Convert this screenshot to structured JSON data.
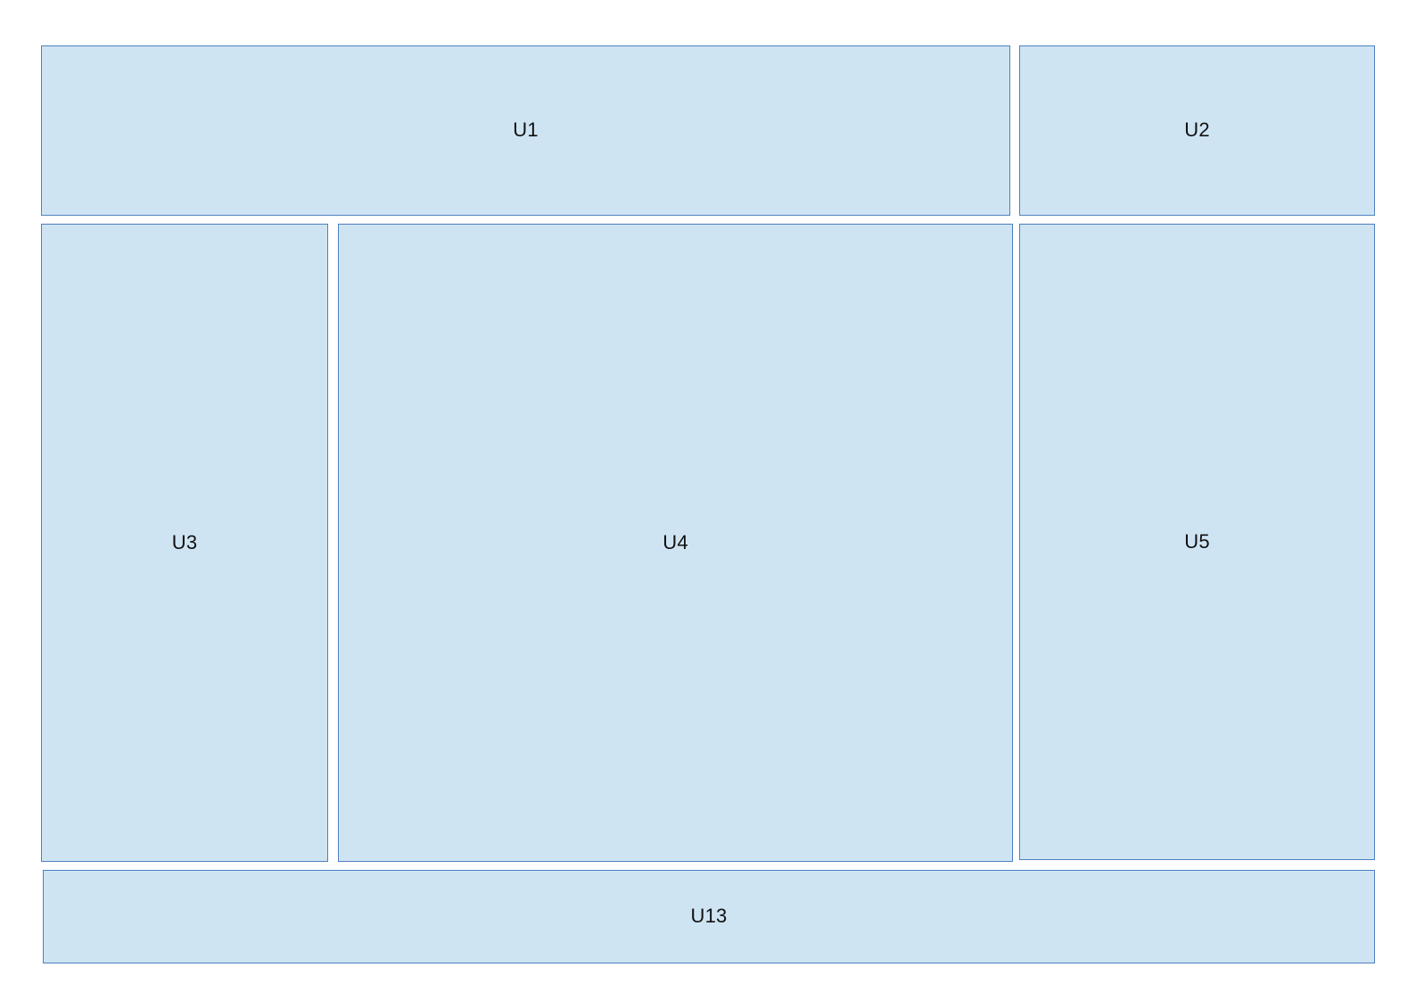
{
  "regions": {
    "u1": {
      "label": "U1"
    },
    "u2": {
      "label": "U2"
    },
    "u3": {
      "label": "U3"
    },
    "u4": {
      "label": "U4"
    },
    "u5": {
      "label": "U5"
    },
    "u13": {
      "label": "U13"
    }
  },
  "colors": {
    "fill": "#cfe4f3",
    "border": "#4f7fbf",
    "text": "#111111",
    "background": "#ffffff"
  }
}
